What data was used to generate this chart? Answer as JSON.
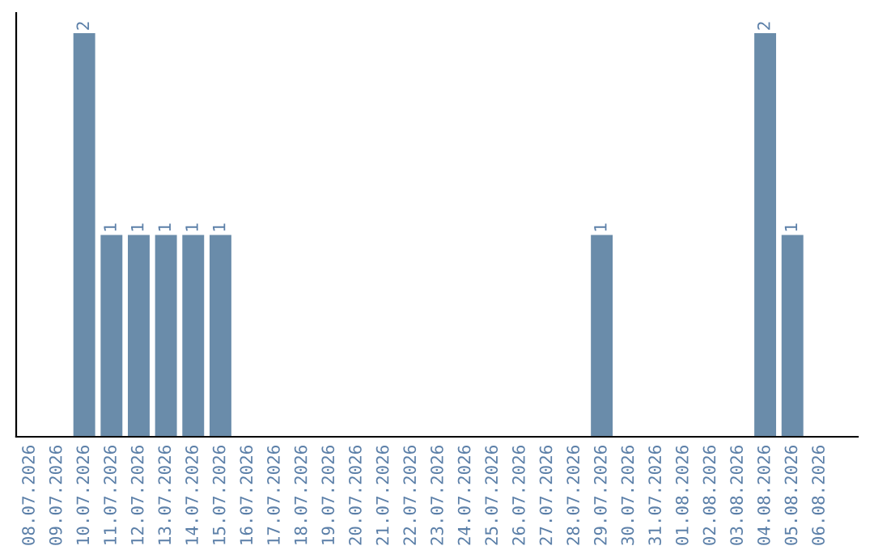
{
  "chart_data": {
    "type": "bar",
    "categories": [
      "08.07.2026",
      "09.07.2026",
      "10.07.2026",
      "11.07.2026",
      "12.07.2026",
      "13.07.2026",
      "14.07.2026",
      "15.07.2026",
      "16.07.2026",
      "17.07.2026",
      "18.07.2026",
      "19.07.2026",
      "20.07.2026",
      "21.07.2026",
      "22.07.2026",
      "23.07.2026",
      "24.07.2026",
      "25.07.2026",
      "26.07.2026",
      "27.07.2026",
      "28.07.2026",
      "29.07.2026",
      "30.07.2026",
      "31.07.2026",
      "01.08.2026",
      "02.08.2026",
      "03.08.2026",
      "04.08.2026",
      "05.08.2026",
      "06.08.2026"
    ],
    "values": [
      0,
      0,
      2,
      1,
      1,
      1,
      1,
      1,
      0,
      0,
      0,
      0,
      0,
      0,
      0,
      0,
      0,
      0,
      0,
      0,
      0,
      1,
      0,
      0,
      0,
      0,
      0,
      2,
      1,
      0
    ],
    "value_labels": [
      null,
      null,
      "2",
      "1",
      "1",
      "1",
      "1",
      "1",
      null,
      null,
      null,
      null,
      null,
      null,
      null,
      null,
      null,
      null,
      null,
      null,
      null,
      "1",
      null,
      null,
      null,
      null,
      null,
      "2",
      "1",
      null
    ],
    "color": "#6a8caa",
    "tick_labels": "x",
    "grid": false,
    "legend": false
  }
}
